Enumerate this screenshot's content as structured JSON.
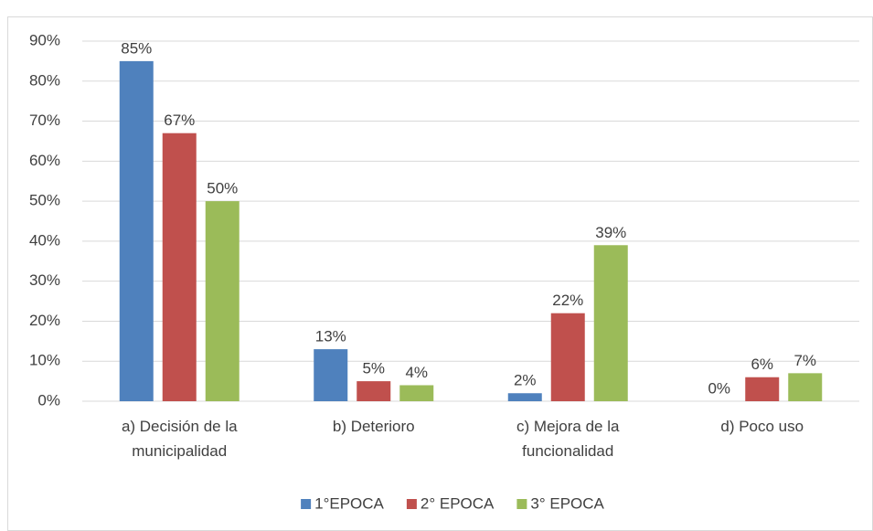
{
  "chart_data": {
    "type": "bar",
    "categories": [
      "a) Decisión de la municipalidad",
      "b) Deterioro",
      "c) Mejora de la funcionalidad",
      "d) Poco uso"
    ],
    "series": [
      {
        "name": "1°EPOCA",
        "color": "#4f81bd",
        "values": [
          85,
          13,
          2,
          0
        ],
        "value_labels": [
          "85%",
          "13%",
          "2%",
          "0%"
        ]
      },
      {
        "name": "2° EPOCA",
        "color": "#c0504d",
        "values": [
          67,
          5,
          22,
          6
        ],
        "value_labels": [
          "67%",
          "5%",
          "22%",
          "6%"
        ]
      },
      {
        "name": "3° EPOCA",
        "color": "#9bbb59",
        "values": [
          50,
          4,
          39,
          7
        ],
        "value_labels": [
          "50%",
          "4%",
          "39%",
          "7%"
        ]
      }
    ],
    "ylim": [
      0,
      90
    ],
    "yticks": [
      {
        "value": 0,
        "label": "0%"
      },
      {
        "value": 10,
        "label": "10%"
      },
      {
        "value": 20,
        "label": "20%"
      },
      {
        "value": 30,
        "label": "30%"
      },
      {
        "value": 40,
        "label": "40%"
      },
      {
        "value": 50,
        "label": "50%"
      },
      {
        "value": 60,
        "label": "60%"
      },
      {
        "value": 70,
        "label": "70%"
      },
      {
        "value": 80,
        "label": "80%"
      },
      {
        "value": 90,
        "label": "90%"
      }
    ],
    "grid": true,
    "legend": "bottom"
  }
}
